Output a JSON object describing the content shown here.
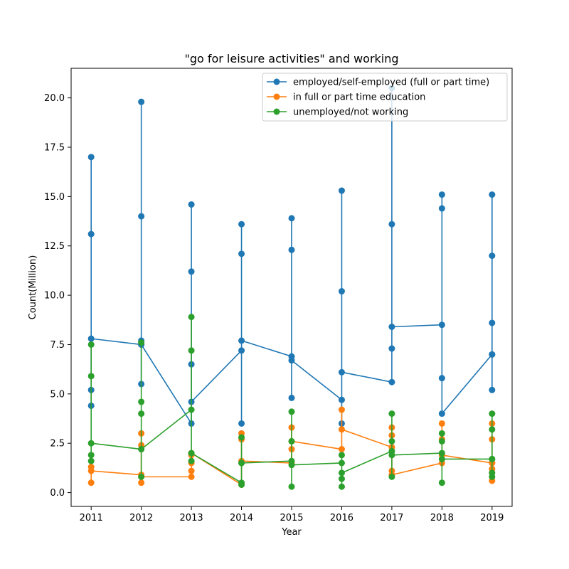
{
  "chart_data": {
    "type": "line",
    "title": "\"go for leisure activities\" and working",
    "xlabel": "Year",
    "ylabel": "Count(Million)",
    "xlim": [
      2010.6,
      2019.4
    ],
    "ylim": [
      -0.7,
      21.5
    ],
    "x_ticks": [
      2011,
      2012,
      2013,
      2014,
      2015,
      2016,
      2017,
      2018,
      2019
    ],
    "y_ticks": [
      0.0,
      2.5,
      5.0,
      7.5,
      10.0,
      12.5,
      15.0,
      17.5,
      20.0
    ],
    "y_tick_labels": [
      "0.0",
      "2.5",
      "5.0",
      "7.5",
      "10.0",
      "12.5",
      "15.0",
      "17.5",
      "20.0"
    ],
    "grid": false,
    "legend_position": "top-right",
    "series": [
      {
        "name": "employed/self-employed (full or part time)",
        "color": "#1f77b4",
        "points": [
          [
            2011,
            5.2
          ],
          [
            2011,
            4.4
          ],
          [
            2011,
            13.1
          ],
          [
            2011,
            17.0
          ],
          [
            2011,
            7.8
          ],
          [
            2012,
            7.5
          ],
          [
            2012,
            19.8
          ],
          [
            2012,
            14.0
          ],
          [
            2012,
            5.5
          ],
          [
            2012,
            7.7
          ],
          [
            2012,
            7.5
          ],
          [
            2013,
            3.5
          ],
          [
            2013,
            14.6
          ],
          [
            2013,
            11.2
          ],
          [
            2013,
            6.5
          ],
          [
            2013,
            4.6
          ],
          [
            2014,
            7.2
          ],
          [
            2014,
            13.6
          ],
          [
            2014,
            12.1
          ],
          [
            2014,
            3.5
          ],
          [
            2014,
            7.7
          ],
          [
            2015,
            6.9
          ],
          [
            2015,
            4.8
          ],
          [
            2015,
            13.9
          ],
          [
            2015,
            12.3
          ],
          [
            2015,
            6.7
          ],
          [
            2016,
            4.7
          ],
          [
            2016,
            15.3
          ],
          [
            2016,
            10.2
          ],
          [
            2016,
            3.5
          ],
          [
            2016,
            6.1
          ],
          [
            2017,
            5.6
          ],
          [
            2017,
            7.3
          ],
          [
            2017,
            20.5
          ],
          [
            2017,
            13.6
          ],
          [
            2017,
            8.4
          ],
          [
            2018,
            8.5
          ],
          [
            2018,
            15.1
          ],
          [
            2018,
            14.4
          ],
          [
            2018,
            5.8
          ],
          [
            2018,
            4.0
          ],
          [
            2019,
            7.0
          ],
          [
            2019,
            8.6
          ],
          [
            2019,
            15.1
          ],
          [
            2019,
            12.0
          ],
          [
            2019,
            5.2
          ],
          [
            2019,
            7.0
          ]
        ]
      },
      {
        "name": "in full or part time education",
        "color": "#ff7f0e",
        "points": [
          [
            2011,
            1.3
          ],
          [
            2011,
            0.5
          ],
          [
            2011,
            1.1
          ],
          [
            2012,
            0.9
          ],
          [
            2012,
            3.0
          ],
          [
            2012,
            2.4
          ],
          [
            2012,
            0.5
          ],
          [
            2012,
            0.8
          ],
          [
            2013,
            0.8
          ],
          [
            2013,
            1.1
          ],
          [
            2013,
            1.5
          ],
          [
            2013,
            1.9
          ],
          [
            2013,
            2.0
          ],
          [
            2014,
            0.4
          ],
          [
            2014,
            3.0
          ],
          [
            2014,
            2.7
          ],
          [
            2014,
            1.6
          ],
          [
            2015,
            1.5
          ],
          [
            2015,
            3.3
          ],
          [
            2015,
            2.2
          ],
          [
            2015,
            2.6
          ],
          [
            2016,
            2.2
          ],
          [
            2016,
            4.2
          ],
          [
            2016,
            3.2
          ],
          [
            2017,
            2.3
          ],
          [
            2017,
            3.3
          ],
          [
            2017,
            2.9
          ],
          [
            2017,
            1.1
          ],
          [
            2017,
            0.9
          ],
          [
            2018,
            1.5
          ],
          [
            2018,
            3.5
          ],
          [
            2018,
            2.7
          ],
          [
            2018,
            1.9
          ],
          [
            2019,
            1.5
          ],
          [
            2019,
            3.5
          ],
          [
            2019,
            2.7
          ],
          [
            2019,
            1.2
          ],
          [
            2019,
            0.6
          ],
          [
            2019,
            1.5
          ]
        ]
      },
      {
        "name": "unemployed/not working",
        "color": "#2ca02c",
        "points": [
          [
            2011,
            1.6
          ],
          [
            2011,
            1.9
          ],
          [
            2011,
            5.9
          ],
          [
            2011,
            7.5
          ],
          [
            2011,
            2.5
          ],
          [
            2012,
            2.2
          ],
          [
            2012,
            7.6
          ],
          [
            2012,
            4.6
          ],
          [
            2012,
            0.8
          ],
          [
            2012,
            4.0
          ],
          [
            2012,
            2.2
          ],
          [
            2013,
            4.2
          ],
          [
            2013,
            8.9
          ],
          [
            2013,
            7.2
          ],
          [
            2013,
            1.6
          ],
          [
            2013,
            2.0
          ],
          [
            2014,
            0.5
          ],
          [
            2014,
            2.8
          ],
          [
            2014,
            1.5
          ],
          [
            2014,
            0.4
          ],
          [
            2014,
            1.5
          ],
          [
            2015,
            1.6
          ],
          [
            2015,
            0.3
          ],
          [
            2015,
            4.1
          ],
          [
            2015,
            2.6
          ],
          [
            2015,
            1.4
          ],
          [
            2016,
            1.5
          ],
          [
            2016,
            1.9
          ],
          [
            2016,
            0.7
          ],
          [
            2016,
            0.3
          ],
          [
            2016,
            1.0
          ],
          [
            2017,
            2.1
          ],
          [
            2017,
            2.6
          ],
          [
            2017,
            4.0
          ],
          [
            2017,
            0.8
          ],
          [
            2017,
            1.9
          ],
          [
            2018,
            2.0
          ],
          [
            2018,
            3.0
          ],
          [
            2018,
            2.6
          ],
          [
            2018,
            0.5
          ],
          [
            2018,
            1.7
          ],
          [
            2019,
            1.7
          ],
          [
            2019,
            3.2
          ],
          [
            2019,
            4.0
          ],
          [
            2019,
            1.0
          ],
          [
            2019,
            0.8
          ],
          [
            2019,
            1.7
          ]
        ]
      }
    ]
  }
}
